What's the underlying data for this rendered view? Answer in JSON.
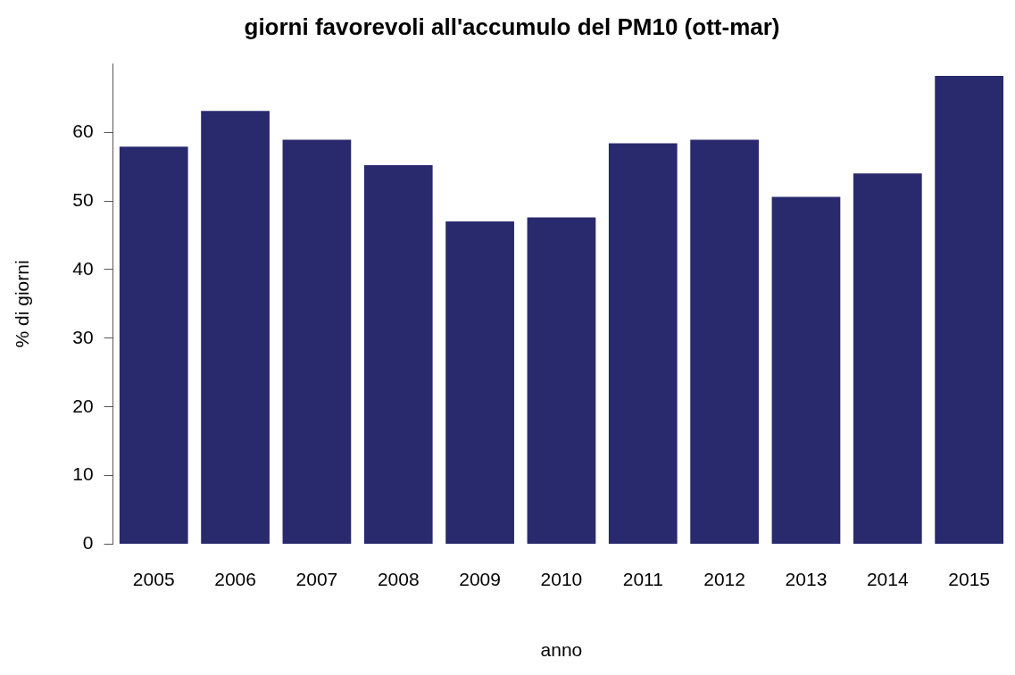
{
  "chart_data": {
    "type": "bar",
    "title": "giorni favorevoli all'accumulo del PM10 (ott-mar)",
    "xlabel": "anno",
    "ylabel": "% di giorni",
    "categories": [
      "2005",
      "2006",
      "2007",
      "2008",
      "2009",
      "2010",
      "2011",
      "2012",
      "2013",
      "2014",
      "2015"
    ],
    "values": [
      57.9,
      63.1,
      58.9,
      55.2,
      47.0,
      47.6,
      58.4,
      58.9,
      50.6,
      54.0,
      68.2
    ],
    "color": "#29296e",
    "ylim": [
      0,
      70
    ],
    "yticks": [
      0,
      10,
      20,
      30,
      40,
      50,
      60
    ],
    "grid": false,
    "legend": false
  }
}
